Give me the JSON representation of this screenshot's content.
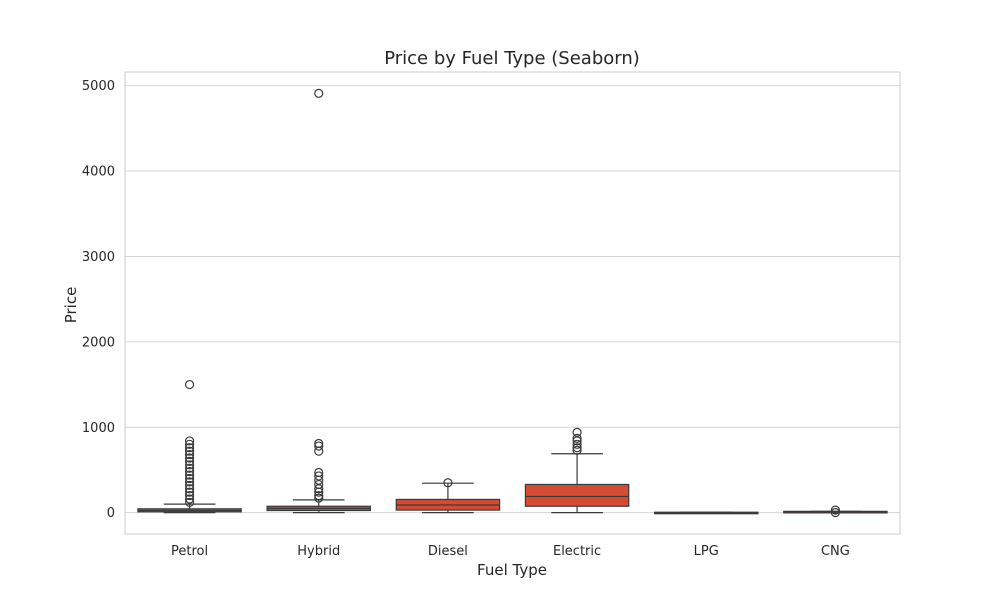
{
  "chart_data": {
    "type": "box",
    "title": "Price by Fuel Type (Seaborn)",
    "xlabel": "Fuel Type",
    "ylabel": "Price",
    "ylim": [
      -250,
      5160
    ],
    "yticks": [
      0,
      1000,
      2000,
      3000,
      4000,
      5000
    ],
    "grid": true,
    "colors": {
      "box": "#d44a33",
      "line": "#3a3a3a",
      "grid": "#d5d5d5",
      "frame": "#cccccc"
    },
    "categories": [
      "Petrol",
      "Hybrid",
      "Diesel",
      "Electric",
      "LPG",
      "CNG"
    ],
    "boxes": [
      {
        "category": "Petrol",
        "whisker_low": 0,
        "q1": 10,
        "median": 25,
        "q3": 45,
        "whisker_high": 100,
        "outliers": [
          120,
          160,
          200,
          240,
          280,
          320,
          360,
          400,
          440,
          480,
          520,
          560,
          600,
          640,
          680,
          720,
          760,
          800,
          840,
          1500
        ]
      },
      {
        "category": "Hybrid",
        "whisker_low": 0,
        "q1": 25,
        "median": 50,
        "q3": 75,
        "whisker_high": 150,
        "outliers": [
          170,
          200,
          240,
          280,
          330,
          380,
          430,
          470,
          720,
          780,
          810,
          4910
        ]
      },
      {
        "category": "Diesel",
        "whisker_low": 0,
        "q1": 30,
        "median": 90,
        "q3": 155,
        "whisker_high": 345,
        "outliers": [
          350
        ]
      },
      {
        "category": "Electric",
        "whisker_low": 0,
        "q1": 75,
        "median": 190,
        "q3": 330,
        "whisker_high": 690,
        "outliers": [
          730,
          760,
          800,
          840,
          870,
          940
        ]
      },
      {
        "category": "LPG",
        "whisker_low": -5,
        "q1": -5,
        "median": 0,
        "q3": 5,
        "whisker_high": 5,
        "outliers": []
      },
      {
        "category": "CNG",
        "whisker_low": 5,
        "q1": 5,
        "median": 10,
        "q3": 15,
        "whisker_high": 15,
        "outliers": [
          0,
          30
        ]
      }
    ]
  }
}
